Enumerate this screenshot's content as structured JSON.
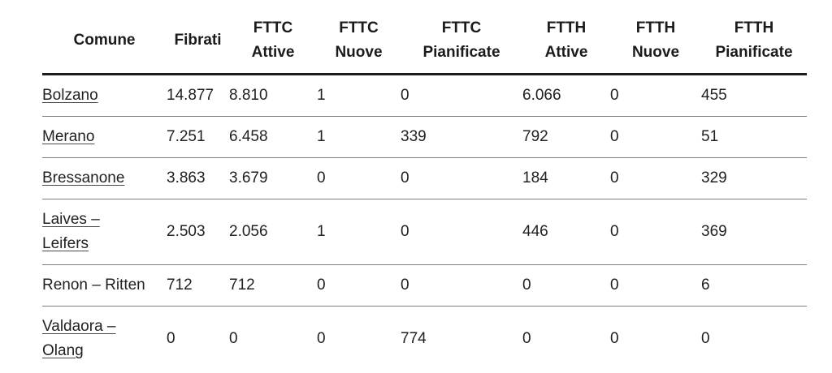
{
  "colors": {
    "text": "#212121",
    "header_rule": "#1c1c1c",
    "row_rule": "#7f7f7f",
    "background": "#ffffff"
  },
  "table": {
    "columns": [
      {
        "label": "Comune"
      },
      {
        "label": "Fibrati"
      },
      {
        "label": "FTTC\nAttive"
      },
      {
        "label": "FTTC\nNuove"
      },
      {
        "label": "FTTC\nPianificate"
      },
      {
        "label": "FTTH\nAttive"
      },
      {
        "label": "FTTH\nNuove"
      },
      {
        "label": "FTTH\nPianificate"
      }
    ],
    "rows": [
      {
        "comune": "Bolzano",
        "is_link": true,
        "values": [
          "14.877",
          "8.810",
          "1",
          "0",
          "6.066",
          "0",
          "455"
        ]
      },
      {
        "comune": "Merano",
        "is_link": true,
        "values": [
          "7.251",
          "6.458",
          "1",
          "339",
          "792",
          "0",
          "51"
        ]
      },
      {
        "comune": "Bressanone",
        "is_link": true,
        "values": [
          "3.863",
          "3.679",
          "0",
          "0",
          "184",
          "0",
          "329"
        ]
      },
      {
        "comune": "Laives –\nLeifers",
        "is_link": true,
        "values": [
          "2.503",
          "2.056",
          "1",
          "0",
          "446",
          "0",
          "369"
        ]
      },
      {
        "comune": "Renon – Ritten",
        "is_link": false,
        "values": [
          "712",
          "712",
          "0",
          "0",
          "0",
          "0",
          "6"
        ]
      },
      {
        "comune": "Valdaora –\nOlang",
        "is_link": true,
        "values": [
          "0",
          "0",
          "0",
          "774",
          "0",
          "0",
          "0"
        ]
      }
    ]
  }
}
